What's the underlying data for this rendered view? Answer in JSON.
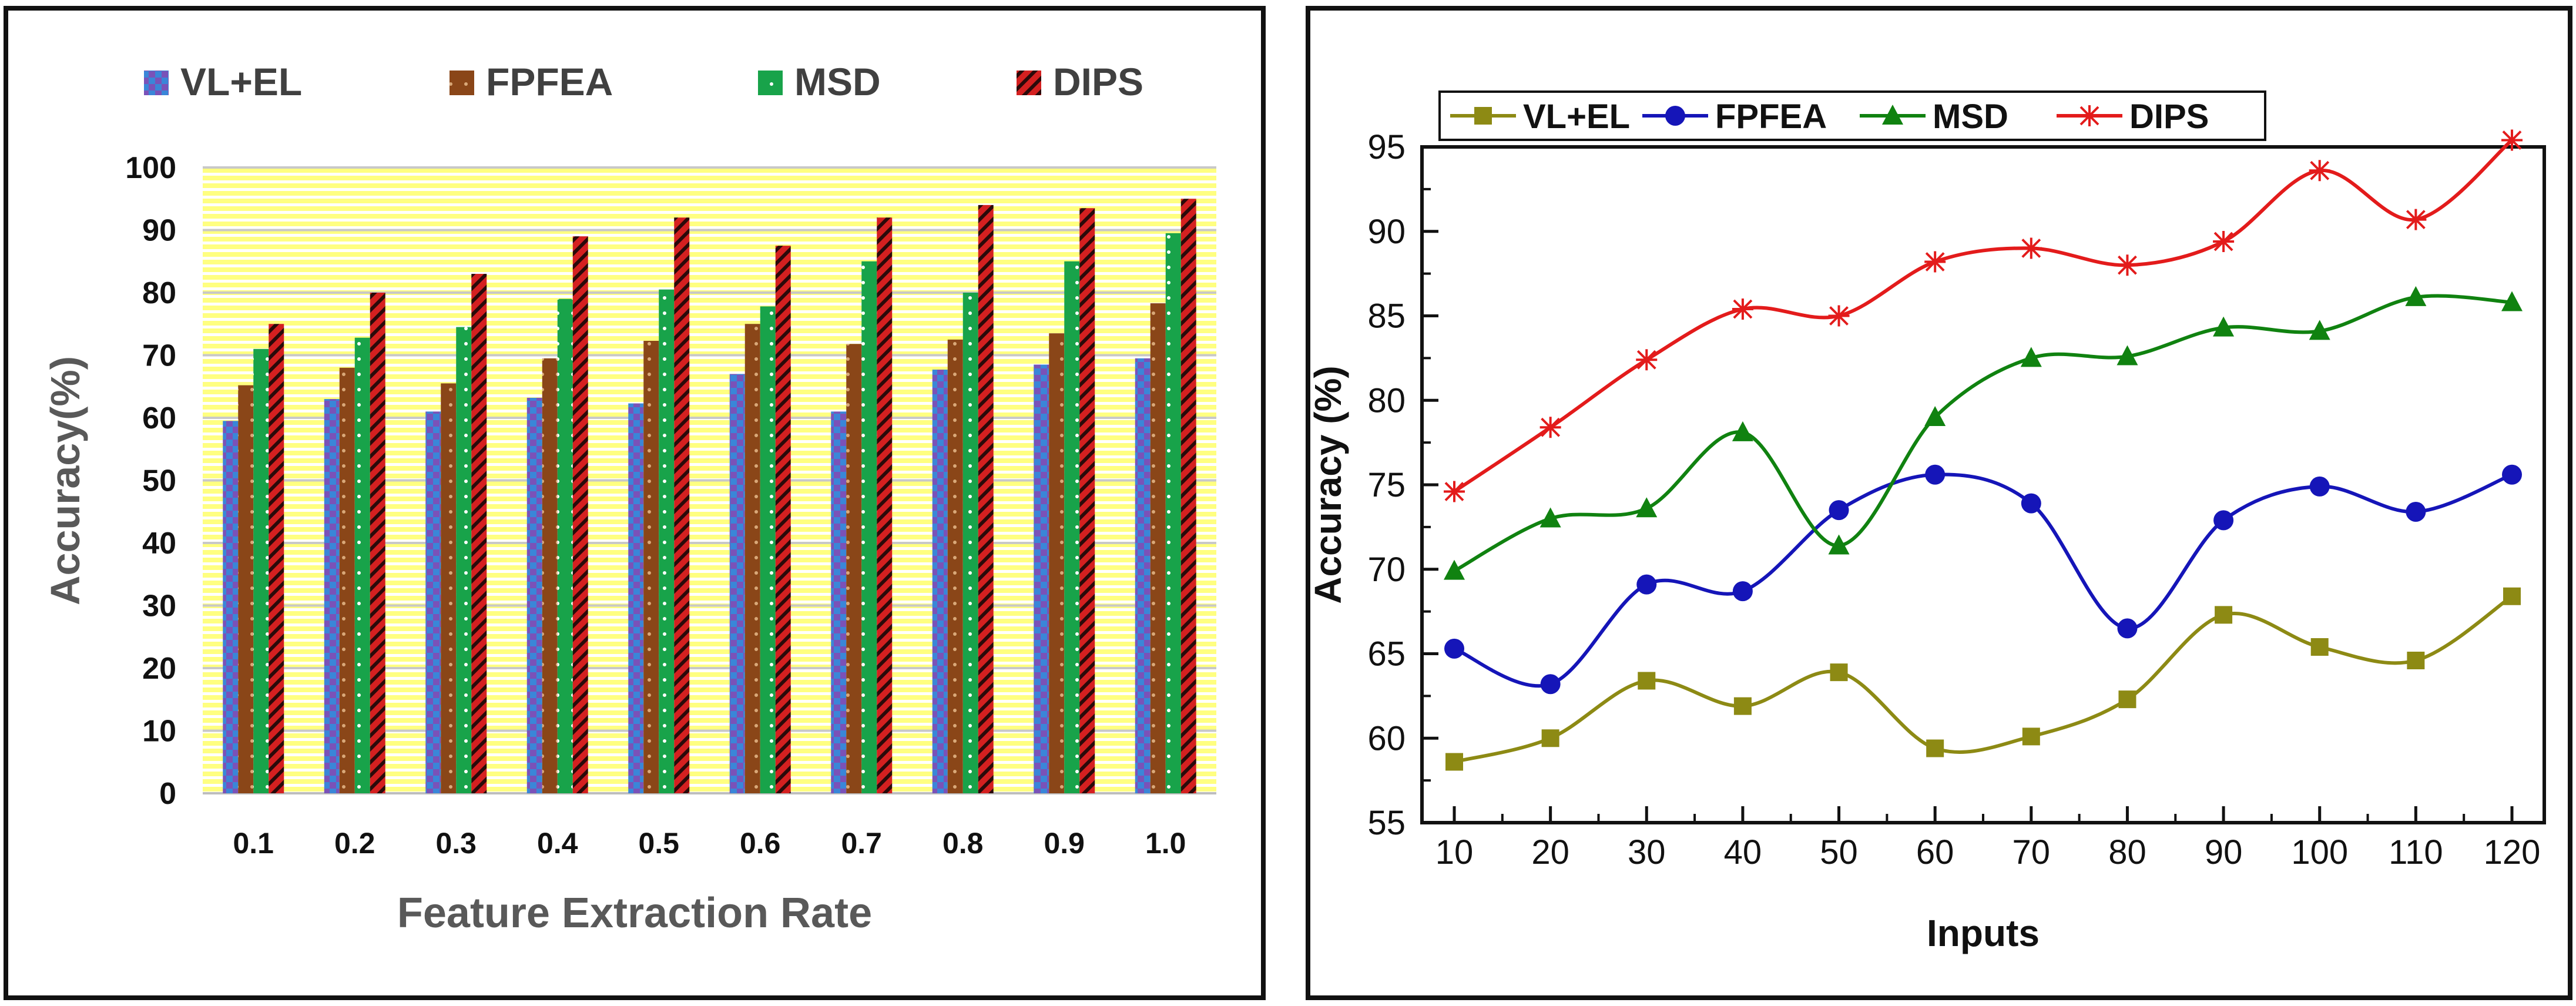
{
  "chart_data": [
    {
      "type": "bar",
      "title": "",
      "xlabel": "Feature Extraction Rate",
      "ylabel": "Accuracy(%)",
      "ylim": [
        0,
        100
      ],
      "yticks": [
        "0",
        "10",
        "20",
        "30",
        "40",
        "50",
        "60",
        "70",
        "80",
        "90",
        "100"
      ],
      "categories": [
        "0.1",
        "0.2",
        "0.3",
        "0.4",
        "0.5",
        "0.6",
        "0.7",
        "0.8",
        "0.9",
        "1.0"
      ],
      "grid": true,
      "legend_position": "top",
      "series": [
        {
          "name": "VL+EL",
          "color": "#3a86d8",
          "values": [
            59.5,
            63,
            61,
            63.2,
            62.3,
            67,
            61,
            67.7,
            68.5,
            69.5
          ]
        },
        {
          "name": "FPFEA",
          "color": "#8a4618",
          "values": [
            65.2,
            68,
            65.5,
            69.5,
            72.3,
            75,
            71.8,
            72.5,
            73.5,
            78.3
          ]
        },
        {
          "name": "MSD",
          "color": "#18a34a",
          "values": [
            71,
            72.8,
            74.5,
            79,
            80.5,
            77.8,
            85,
            80,
            85,
            89.5
          ]
        },
        {
          "name": "DIPS",
          "color": "#d42020",
          "values": [
            75,
            80,
            83,
            89,
            92,
            87.5,
            92,
            94,
            93.5,
            95
          ]
        }
      ]
    },
    {
      "type": "line",
      "title": "",
      "xlabel": "Inputs",
      "ylabel": "Accuracy (%)",
      "ylim": [
        55,
        95
      ],
      "yticks": [
        "55",
        "60",
        "65",
        "70",
        "75",
        "80",
        "85",
        "90",
        "95"
      ],
      "x": [
        10,
        20,
        30,
        40,
        50,
        60,
        70,
        80,
        90,
        100,
        110,
        120
      ],
      "xticks": [
        "10",
        "20",
        "30",
        "40",
        "50",
        "60",
        "70",
        "80",
        "90",
        "100",
        "110",
        "120"
      ],
      "grid": false,
      "legend_position": "top",
      "series": [
        {
          "name": "VL+EL",
          "color": "#8d8a14",
          "marker": "square",
          "values": [
            58.6,
            60,
            63.4,
            61.9,
            63.9,
            59.4,
            60.1,
            62.3,
            67.3,
            65.4,
            64.6,
            68.4
          ]
        },
        {
          "name": "FPFEA",
          "color": "#1515b8",
          "marker": "circle",
          "values": [
            65.3,
            63.2,
            69.1,
            68.7,
            73.5,
            75.6,
            73.9,
            66.5,
            72.9,
            74.9,
            73.4,
            75.6
          ]
        },
        {
          "name": "MSD",
          "color": "#108210",
          "marker": "triangle",
          "values": [
            69.9,
            73,
            73.6,
            78.1,
            71.4,
            79,
            82.5,
            82.6,
            84.3,
            84.1,
            86.1,
            85.8
          ]
        },
        {
          "name": "DIPS",
          "color": "#e31b1b",
          "marker": "star",
          "values": [
            74.6,
            78.4,
            82.4,
            85.4,
            85,
            88.2,
            89,
            88,
            89.4,
            93.6,
            90.7,
            95.4
          ]
        }
      ]
    }
  ]
}
